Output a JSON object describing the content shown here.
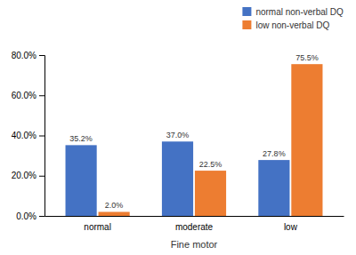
{
  "chart_data": {
    "type": "bar",
    "categories": [
      "normal",
      "moderate",
      "low"
    ],
    "series": [
      {
        "name": "normal non-verbal DQ",
        "color": "#4472C4",
        "values": [
          35.2,
          37.0,
          27.8
        ],
        "value_labels": [
          "35.2%",
          "37.0%",
          "27.8%"
        ]
      },
      {
        "name": "low non-verbal DQ",
        "color": "#ED7D31",
        "values": [
          2.0,
          22.5,
          75.5
        ],
        "value_labels": [
          "2.0%",
          "22.5%",
          "75.5%"
        ]
      }
    ],
    "xlabel": "Fine motor",
    "ylim": [
      0,
      80
    ],
    "yticks": [
      {
        "value": 0,
        "label": "0.0%"
      },
      {
        "value": 20,
        "label": "20.0%"
      },
      {
        "value": 40,
        "label": "40.0%"
      },
      {
        "value": 60,
        "label": "60.0%"
      },
      {
        "value": 80,
        "label": "80.0%"
      }
    ],
    "data_labels": true,
    "grid": false,
    "legend": "upper right"
  }
}
